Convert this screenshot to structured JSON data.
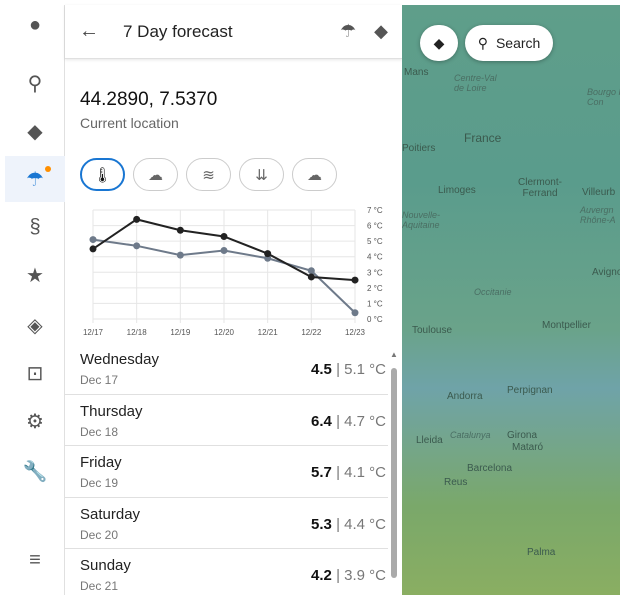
{
  "sidebar": {
    "items": [
      {
        "icon": "account-icon"
      },
      {
        "icon": "search-icon"
      },
      {
        "icon": "layers-icon"
      },
      {
        "icon": "umbrella-icon",
        "active": true
      },
      {
        "icon": "route-icon"
      },
      {
        "icon": "star-icon"
      },
      {
        "icon": "directions-icon"
      },
      {
        "icon": "track-icon"
      },
      {
        "icon": "gear-icon"
      },
      {
        "icon": "wrench-icon"
      },
      {
        "icon": "menu-icon"
      }
    ]
  },
  "header": {
    "title": "7 Day forecast"
  },
  "location": {
    "coords": "44.2890, 7.5370",
    "label": "Current location"
  },
  "tabs": [
    {
      "icon": "thermometer-icon",
      "selected": true
    },
    {
      "icon": "snow-icon"
    },
    {
      "icon": "wind-icon"
    },
    {
      "icon": "pressure-icon"
    },
    {
      "icon": "cloud-icon"
    }
  ],
  "chart_data": {
    "type": "line",
    "x": [
      "12/17",
      "12/18",
      "12/19",
      "12/20",
      "12/21",
      "12/22",
      "12/23"
    ],
    "yticks": [
      "0 °C",
      "1 °C",
      "2 °C",
      "3 °C",
      "4 °C",
      "5 °C",
      "6 °C",
      "7 °C"
    ],
    "ylim": [
      0,
      7
    ],
    "grid": true,
    "series": [
      {
        "values": [
          4.5,
          6.4,
          5.7,
          5.3,
          4.2,
          2.7,
          2.5
        ],
        "color": "#222222"
      },
      {
        "values": [
          5.1,
          4.7,
          4.1,
          4.4,
          3.9,
          3.1,
          0.4
        ],
        "color": "#6e7a8a"
      }
    ]
  },
  "days": [
    {
      "day": "Wednesday",
      "date": "Dec 17",
      "high": "4.5",
      "low": "5.1 °C"
    },
    {
      "day": "Thursday",
      "date": "Dec 18",
      "high": "6.4",
      "low": "4.7 °C"
    },
    {
      "day": "Friday",
      "date": "Dec 19",
      "high": "5.7",
      "low": "4.1 °C"
    },
    {
      "day": "Saturday",
      "date": "Dec 20",
      "high": "5.3",
      "low": "4.4 °C"
    },
    {
      "day": "Sunday",
      "date": "Dec 21",
      "high": "4.2",
      "low": "3.9 °C"
    }
  ],
  "map": {
    "search_label": "Search",
    "cities": [
      "Mans",
      "Poitiers",
      "Limoges",
      "Clermont-Ferrand",
      "Villeurb",
      "Toulouse",
      "Montpellier",
      "Avigno",
      "Andorra",
      "Perpignan",
      "Girona",
      "Mataró",
      "Lleida",
      "Barcelona",
      "Reus",
      "Palma",
      "France"
    ],
    "regions": [
      "Centre-Val de Loire",
      "Bourgo Franc Con",
      "Auvergn Rhône-A",
      "Nouvelle-Aquitaine",
      "Occitanie",
      "Catalunya"
    ]
  }
}
